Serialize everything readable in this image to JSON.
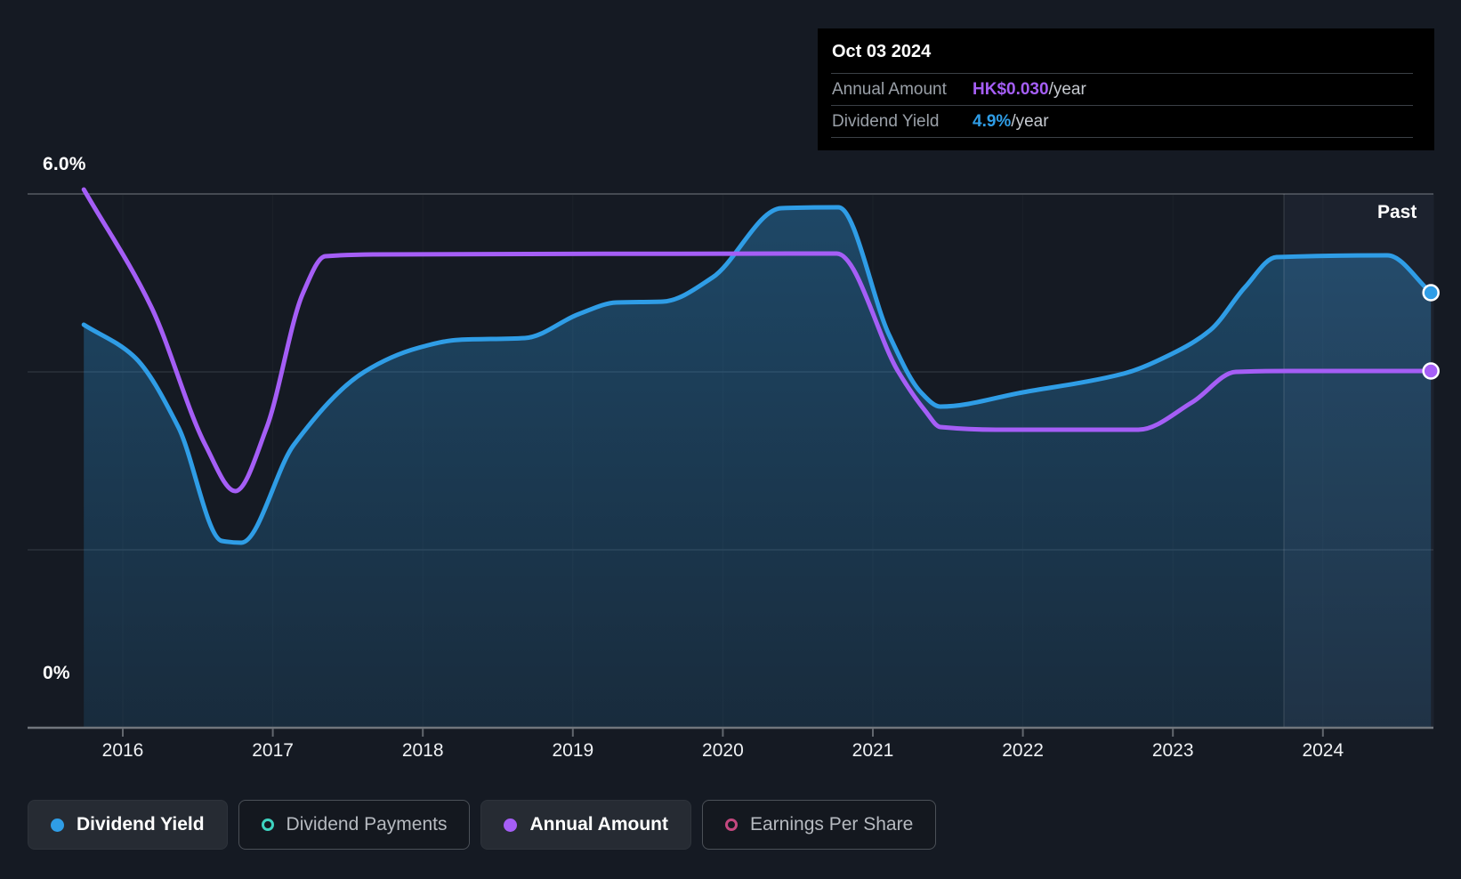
{
  "tooltip": {
    "date": "Oct 03 2024",
    "rows": [
      {
        "label": "Annual Amount",
        "value": "HK$0.030",
        "suffix": "/year",
        "value_color": "#a55ef6"
      },
      {
        "label": "Dividend Yield",
        "value": "4.9%",
        "suffix": "/year",
        "value_color": "#2f9de6"
      }
    ]
  },
  "axis": {
    "y_top_label": "6.0%",
    "y_bottom_label": "0%"
  },
  "past_label": "Past",
  "legend": {
    "items": [
      {
        "label": "Dividend Yield",
        "marker": "filled",
        "color": "#2f9de6",
        "active": true
      },
      {
        "label": "Dividend Payments",
        "marker": "ring",
        "color": "#3ed3c0",
        "active": false
      },
      {
        "label": "Annual Amount",
        "marker": "filled",
        "color": "#a55ef6",
        "active": true
      },
      {
        "label": "Earnings Per Share",
        "marker": "ring",
        "color": "#c4487f",
        "active": false
      }
    ]
  },
  "chart_data": {
    "type": "area",
    "y_axis": {
      "unit": "%",
      "min": 0,
      "max": 6,
      "gridlines_pct": [
        6,
        4,
        2,
        0
      ],
      "top_label": "6.0%",
      "bottom_label": "0%"
    },
    "x_axis": {
      "tick_years": [
        2016,
        2017,
        2018,
        2019,
        2020,
        2021,
        2022,
        2023,
        2024
      ]
    },
    "x_domain": [
      2015.74,
      2024.74
    ],
    "past_band": {
      "start_year": 2023.74,
      "end_year": 2024.74,
      "label": "Past"
    },
    "series": [
      {
        "name": "Dividend Yield",
        "color": "#2f9de6",
        "area_fill": true,
        "endpoint_dot": true,
        "points": [
          [
            2015.74,
            4.53
          ],
          [
            2016.07,
            4.18
          ],
          [
            2016.37,
            3.38
          ],
          [
            2016.66,
            2.1
          ],
          [
            2016.79,
            2.08
          ],
          [
            2017.14,
            3.18
          ],
          [
            2017.61,
            4.0
          ],
          [
            2017.97,
            4.27
          ],
          [
            2018.24,
            4.36
          ],
          [
            2018.68,
            4.38
          ],
          [
            2019.04,
            4.65
          ],
          [
            2019.29,
            4.78
          ],
          [
            2019.6,
            4.79
          ],
          [
            2019.93,
            5.06
          ],
          [
            2020.39,
            5.84
          ],
          [
            2020.77,
            5.85
          ],
          [
            2021.11,
            4.41
          ],
          [
            2021.32,
            3.77
          ],
          [
            2021.45,
            3.61
          ],
          [
            2022.0,
            3.77
          ],
          [
            2022.67,
            3.98
          ],
          [
            2022.99,
            4.2
          ],
          [
            2023.25,
            4.47
          ],
          [
            2023.48,
            4.95
          ],
          [
            2023.69,
            5.29
          ],
          [
            2024.43,
            5.31
          ],
          [
            2024.72,
            4.89
          ]
        ]
      },
      {
        "name": "Annual Amount",
        "color": "#a55ef6",
        "area_fill": false,
        "endpoint_dot": true,
        "points": [
          [
            2015.74,
            6.05
          ],
          [
            2016.19,
            4.73
          ],
          [
            2016.55,
            3.18
          ],
          [
            2016.75,
            2.66
          ],
          [
            2016.96,
            3.38
          ],
          [
            2017.2,
            4.88
          ],
          [
            2017.35,
            5.3
          ],
          [
            2017.67,
            5.32
          ],
          [
            2020.76,
            5.33
          ],
          [
            2021.17,
            4.0
          ],
          [
            2021.35,
            3.56
          ],
          [
            2021.45,
            3.38
          ],
          [
            2021.82,
            3.35
          ],
          [
            2022.77,
            3.35
          ],
          [
            2023.13,
            3.66
          ],
          [
            2023.42,
            4.0
          ],
          [
            2023.78,
            4.01
          ],
          [
            2024.72,
            4.01
          ]
        ]
      }
    ],
    "colors": {
      "background": "#151a23",
      "grid_major": "#454a52",
      "grid_minor": "#2b313a",
      "axis_line": "#71767d",
      "tick": "#62676e",
      "past_band_fill": "rgba(168,204,255,0.05)",
      "past_divider": "rgba(255,255,255,0.10)",
      "area_top": "rgba(47,159,232,0.34)",
      "area_bottom": "rgba(47,159,232,0.13)"
    }
  }
}
